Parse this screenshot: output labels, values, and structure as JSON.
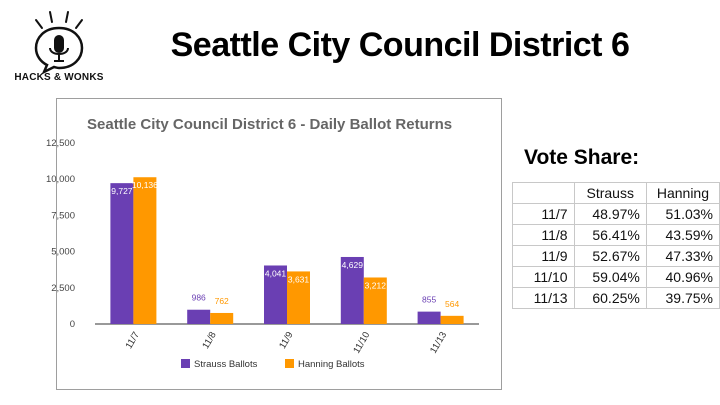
{
  "logo": {
    "text": "HACKS & WONKS",
    "icon": "microphone-icon"
  },
  "headline": "Seattle City Council District 6",
  "chart_data": {
    "type": "bar",
    "title": "Seattle City Council District 6 - Daily Ballot Returns",
    "categories": [
      "11/7",
      "11/8",
      "11/9",
      "11/10",
      "11/13"
    ],
    "series": [
      {
        "name": "Strauss Ballots",
        "values": [
          9727,
          986,
          4041,
          4629,
          855
        ],
        "labels": [
          "9,727",
          "986",
          "4,041",
          "4,629",
          "855"
        ],
        "color": "#6a3fb3"
      },
      {
        "name": "Hanning Ballots",
        "values": [
          10136,
          762,
          3631,
          3212,
          564
        ],
        "labels": [
          "10,136",
          "762",
          "3,631",
          "3,212",
          "564"
        ],
        "color": "#ff9800"
      }
    ],
    "yticks": [
      "0",
      "2,500",
      "5,000",
      "7,500",
      "10,000",
      "12,500"
    ],
    "ylim": [
      0,
      12500
    ],
    "grid": false,
    "legend": "bottom",
    "xlabel": "",
    "ylabel": ""
  },
  "vote_share": {
    "title": "Vote Share:",
    "headers": [
      "Strauss",
      "Hanning"
    ],
    "rows": [
      {
        "date": "11/7",
        "strauss": "48.97%",
        "hanning": "51.03%"
      },
      {
        "date": "11/8",
        "strauss": "56.41%",
        "hanning": "43.59%"
      },
      {
        "date": "11/9",
        "strauss": "52.67%",
        "hanning": "47.33%"
      },
      {
        "date": "11/10",
        "strauss": "59.04%",
        "hanning": "40.96%"
      },
      {
        "date": "11/13",
        "strauss": "60.25%",
        "hanning": "39.75%"
      }
    ]
  }
}
